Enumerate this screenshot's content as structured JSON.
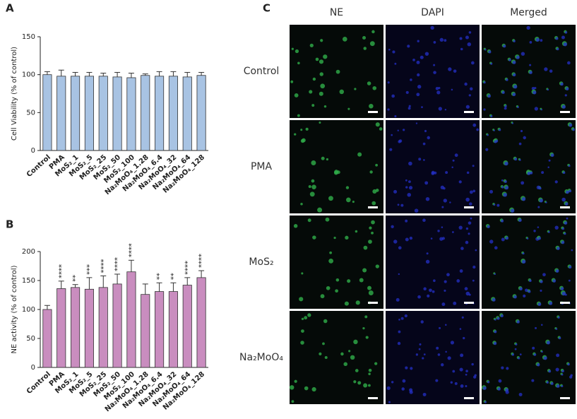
{
  "chart_data": [
    {
      "type": "bar",
      "panel": "A",
      "y_label": "Cell Viability (% of control)",
      "categories": [
        "Control",
        "PMA",
        "MoS₂_1",
        "MoS₂_5",
        "MoS₂_25",
        "MoS₂_50",
        "MoS₂_100",
        "Na₂MoO₄_1.28",
        "Na₂MoO₄_6.4",
        "Na₂MoO₄_32",
        "Na₂MoO₄_64",
        "Na₂MoO₄_128"
      ],
      "values": [
        100,
        98,
        98,
        98,
        98,
        97,
        96,
        99,
        98,
        98,
        97,
        99
      ],
      "errors": [
        4,
        8,
        5,
        5,
        4,
        6,
        6,
        2,
        6,
        6,
        6,
        4
      ],
      "color": "#a8c3e3",
      "ylim": [
        0,
        150
      ],
      "yticks": [
        0,
        50,
        100,
        150
      ]
    },
    {
      "type": "bar",
      "panel": "B",
      "y_label": "NE activity (% of control)",
      "categories": [
        "Control",
        "PMA",
        "MoS₂_1",
        "MoS₂_5",
        "MoS₂_25",
        "MoS₂_50",
        "MoS₂_100",
        "Na₂MoO₄_1.28",
        "Na₂MoO₄_6.4",
        "Na₂MoO₄_32",
        "Na₂MoO₄_64",
        "Na₂MoO₄_128"
      ],
      "values": [
        100,
        136,
        138,
        135,
        138,
        144,
        165,
        126,
        131,
        131,
        142,
        155
      ],
      "errors": [
        7,
        13,
        5,
        20,
        20,
        17,
        20,
        18,
        15,
        15,
        13,
        12
      ],
      "annotations": [
        null,
        "****",
        "**",
        "***",
        "****",
        "****",
        "****",
        null,
        "**",
        "**",
        "****",
        "****"
      ],
      "color": "#c98dbf",
      "ylim": [
        0,
        200
      ],
      "yticks": [
        0,
        50,
        100,
        150,
        200
      ]
    }
  ],
  "panel_c": {
    "label": "C",
    "columns": [
      "NE",
      "DAPI",
      "Merged"
    ],
    "rows": [
      "Control",
      "PMA",
      "MoS₂",
      "Na₂MoO₄"
    ]
  }
}
